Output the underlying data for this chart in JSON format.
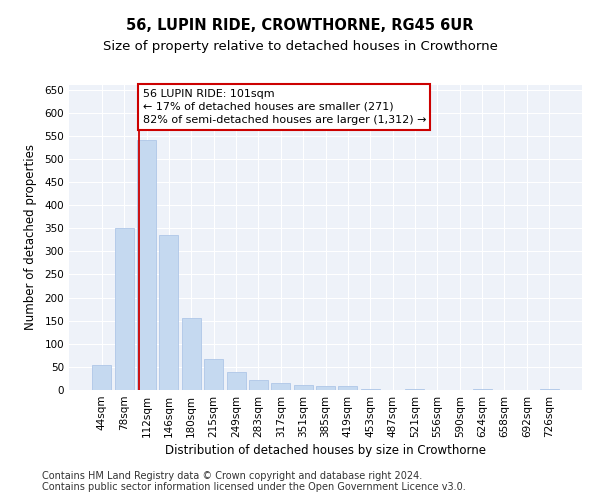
{
  "title1": "56, LUPIN RIDE, CROWTHORNE, RG45 6UR",
  "title2": "Size of property relative to detached houses in Crowthorne",
  "xlabel": "Distribution of detached houses by size in Crowthorne",
  "ylabel": "Number of detached properties",
  "categories": [
    "44sqm",
    "78sqm",
    "112sqm",
    "146sqm",
    "180sqm",
    "215sqm",
    "249sqm",
    "283sqm",
    "317sqm",
    "351sqm",
    "385sqm",
    "419sqm",
    "453sqm",
    "487sqm",
    "521sqm",
    "556sqm",
    "590sqm",
    "624sqm",
    "658sqm",
    "692sqm",
    "726sqm"
  ],
  "values": [
    55,
    350,
    540,
    335,
    155,
    68,
    40,
    22,
    15,
    10,
    8,
    8,
    2,
    0,
    2,
    0,
    0,
    3,
    0,
    0,
    3
  ],
  "bar_color": "#c5d9f0",
  "bar_edgecolor": "#aec6e8",
  "vline_x": 1.67,
  "vline_color": "#cc0000",
  "annotation_text": "56 LUPIN RIDE: 101sqm\n← 17% of detached houses are smaller (271)\n82% of semi-detached houses are larger (1,312) →",
  "annotation_box_color": "#ffffff",
  "annotation_box_edgecolor": "#cc0000",
  "ylim": [
    0,
    660
  ],
  "yticks": [
    0,
    50,
    100,
    150,
    200,
    250,
    300,
    350,
    400,
    450,
    500,
    550,
    600,
    650
  ],
  "background_color": "#eef2f9",
  "footer1": "Contains HM Land Registry data © Crown copyright and database right 2024.",
  "footer2": "Contains public sector information licensed under the Open Government Licence v3.0.",
  "title1_fontsize": 10.5,
  "title2_fontsize": 9.5,
  "xlabel_fontsize": 8.5,
  "ylabel_fontsize": 8.5,
  "tick_fontsize": 7.5,
  "annotation_fontsize": 8,
  "footer_fontsize": 7
}
